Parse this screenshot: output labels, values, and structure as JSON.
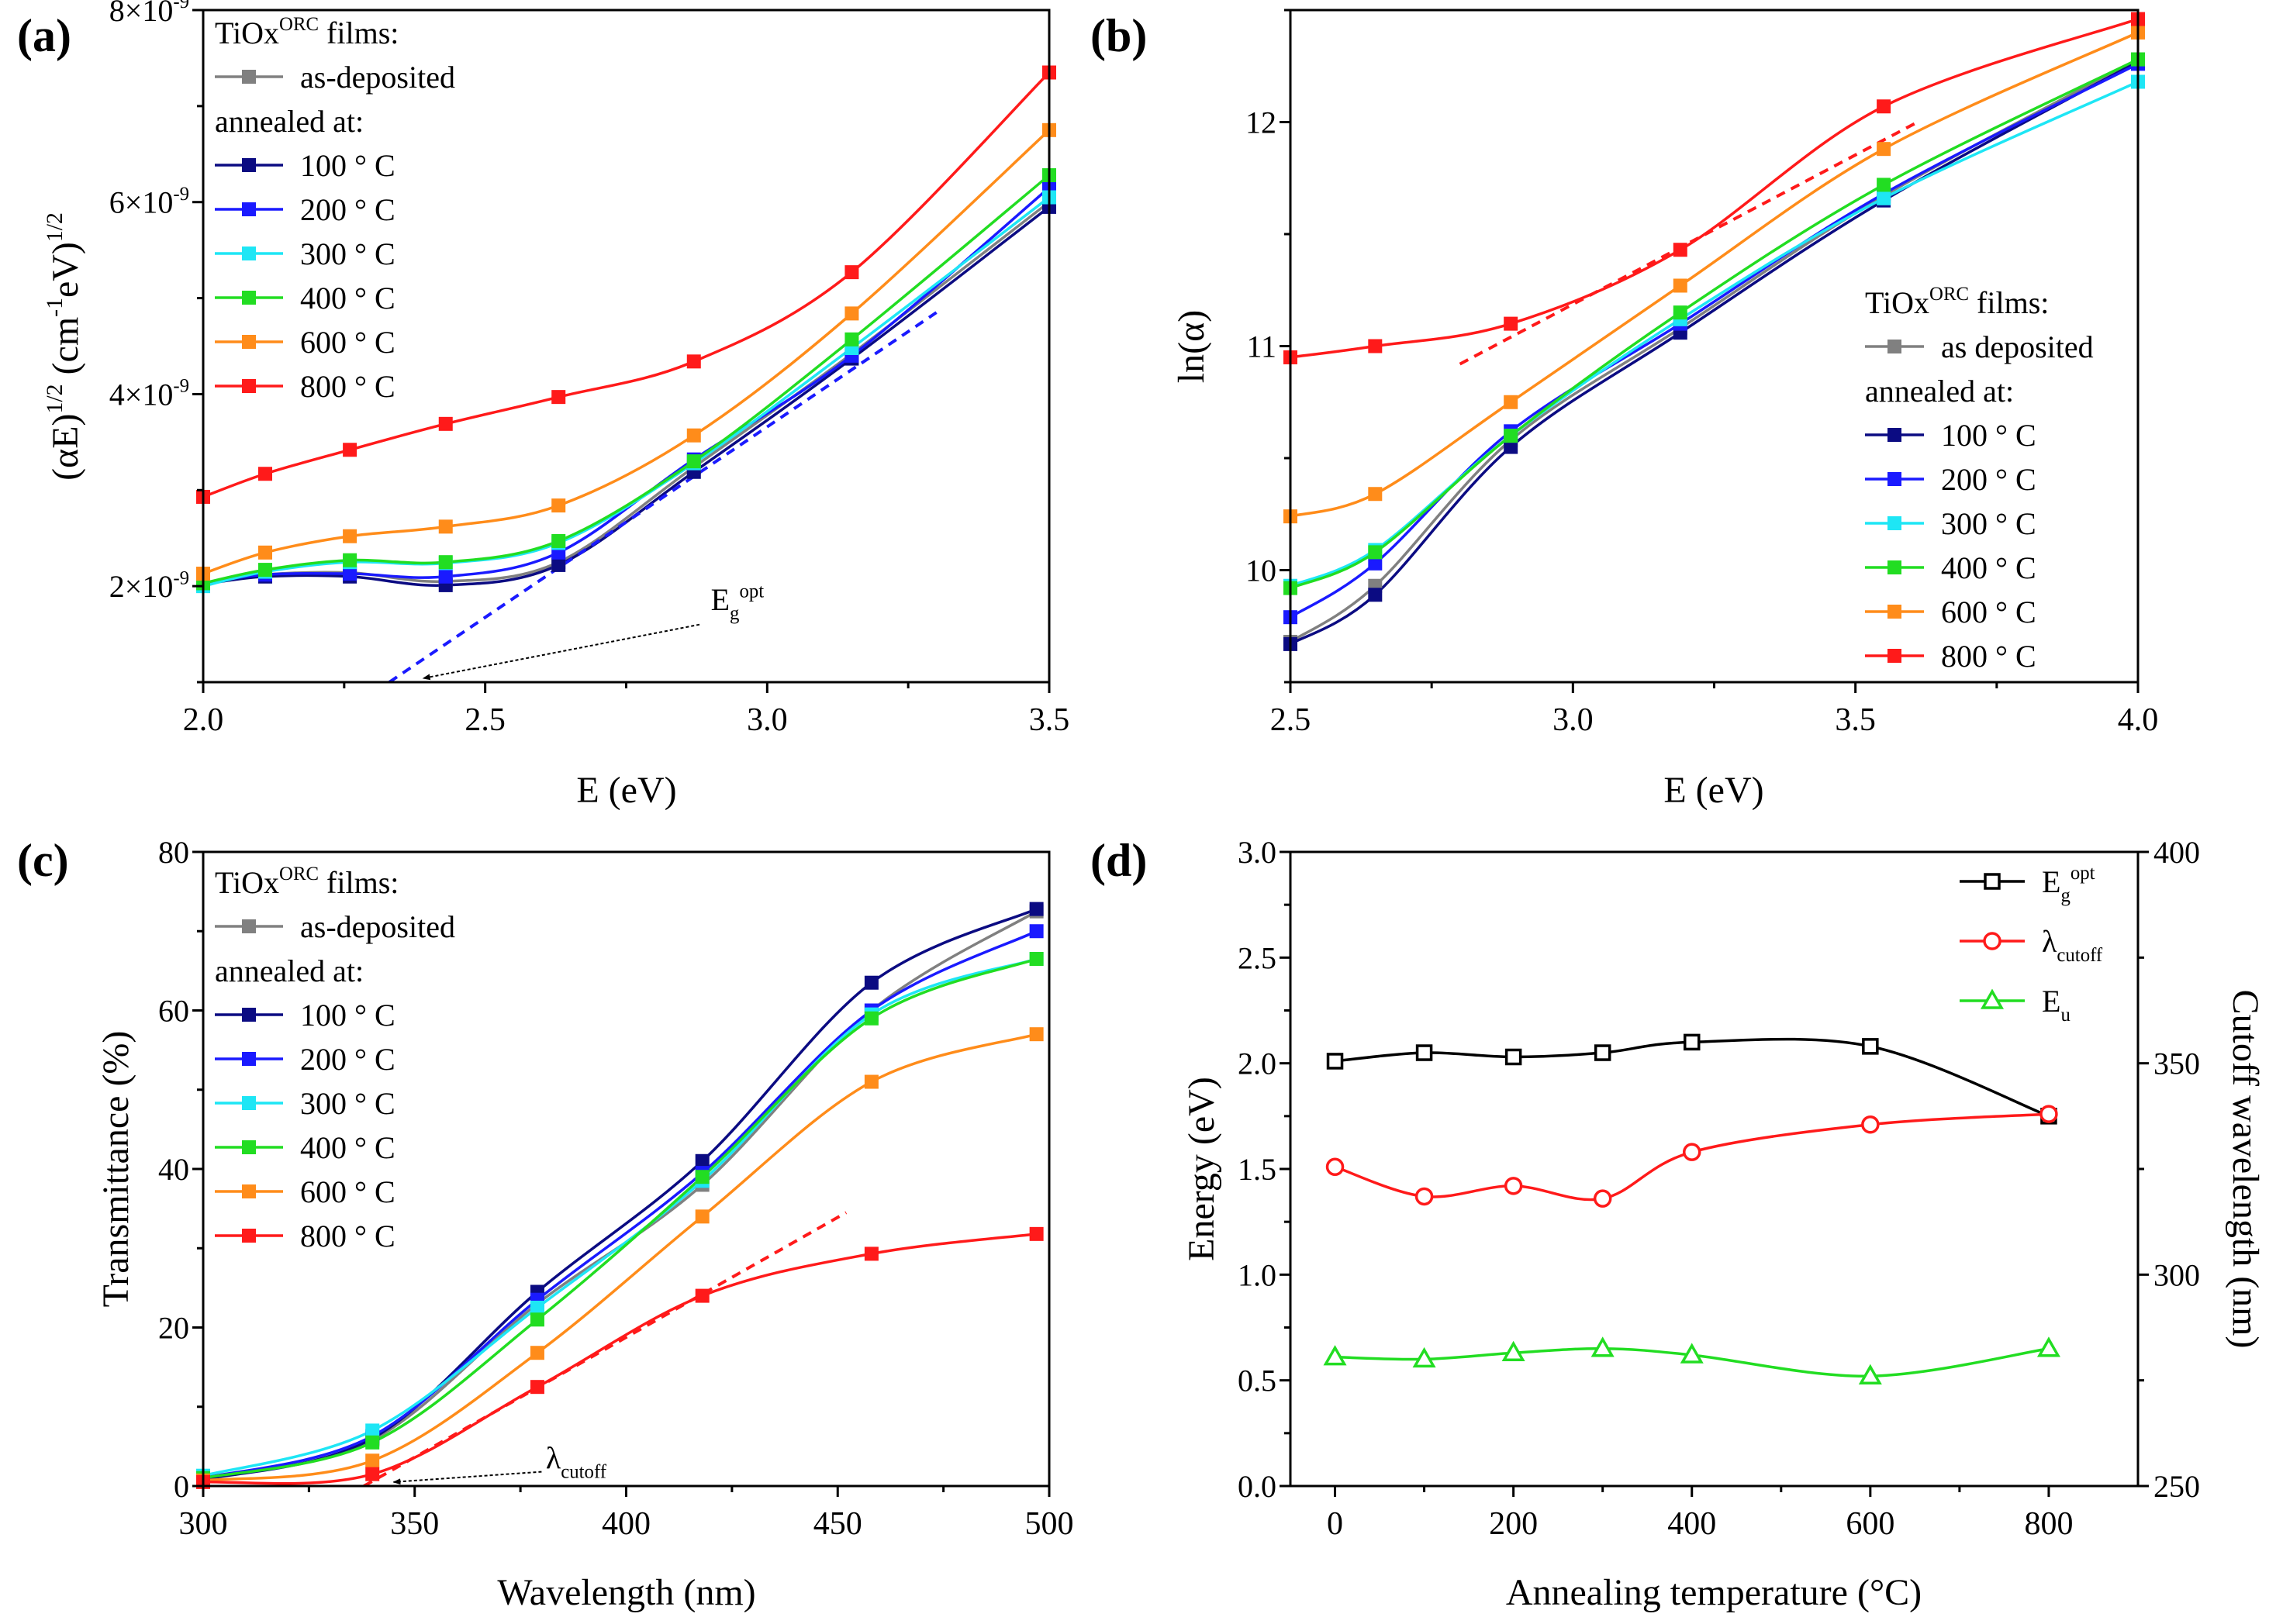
{
  "colors": {
    "as_deposited": "#808080",
    "c100": "#0b0b82",
    "c200": "#1a1aff",
    "c300": "#1ee6f5",
    "c400": "#22dd22",
    "c600": "#ff8c1a",
    "c800": "#ff1a1a",
    "black": "#000000"
  },
  "chart_data": [
    {
      "panel": "(a)",
      "type": "line",
      "xlabel": [
        {
          "t": "E (eV)"
        }
      ],
      "ylabel": [
        {
          "t": "(αE)"
        },
        {
          "t": "1/2",
          "s": "sup"
        },
        {
          "t": " (cm"
        },
        {
          "t": "-1",
          "s": "sup"
        },
        {
          "t": "eV)"
        },
        {
          "t": "1/2",
          "s": "sup"
        }
      ],
      "xlim": [
        2.0,
        3.5
      ],
      "ylim": [
        1e-09,
        8e-09
      ],
      "xticks": [
        {
          "v": 2.0,
          "label": [
            {
              "t": "2.0"
            }
          ]
        },
        {
          "v": 2.5,
          "label": [
            {
              "t": "2.5"
            }
          ]
        },
        {
          "v": 3.0,
          "label": [
            {
              "t": "3.0"
            }
          ]
        },
        {
          "v": 3.5,
          "label": [
            {
              "t": "3.5"
            }
          ]
        }
      ],
      "xminor": [
        2.25,
        2.75,
        3.25
      ],
      "yticks": [
        {
          "v": 2e-09,
          "label": [
            {
              "t": "2×10"
            },
            {
              "t": "-9",
              "s": "sup"
            }
          ]
        },
        {
          "v": 4e-09,
          "label": [
            {
              "t": "4×10"
            },
            {
              "t": "-9",
              "s": "sup"
            }
          ]
        },
        {
          "v": 6e-09,
          "label": [
            {
              "t": "6×10"
            },
            {
              "t": "-9",
              "s": "sup"
            }
          ]
        },
        {
          "v": 8e-09,
          "label": [
            {
              "t": "8×10"
            },
            {
              "t": "-9",
              "s": "sup"
            }
          ]
        }
      ],
      "yminor": [
        1e-09,
        3e-09,
        5e-09,
        7e-09
      ],
      "legend": {
        "title": [
          {
            "t": "TiOx"
          },
          {
            "t": "ORC",
            "s": "sup"
          },
          {
            "t": " films:"
          }
        ],
        "subtitle": "annealed at:",
        "placement": "top-left"
      },
      "x": [
        2.0,
        2.11,
        2.26,
        2.43,
        2.63,
        2.87,
        3.15,
        3.5
      ],
      "series": [
        {
          "name": "as-deposited",
          "color_key": "as_deposited",
          "y": [
            2.02e-09,
            2.12e-09,
            2.14e-09,
            2.05e-09,
            2.25e-09,
            3.24e-09,
            4.42e-09,
            6e-09
          ]
        },
        {
          "name": "100 ° C",
          "color_key": "c100",
          "y": [
            2.02e-09,
            2.1e-09,
            2.1e-09,
            2.01e-09,
            2.22e-09,
            3.19e-09,
            4.37e-09,
            5.95e-09
          ]
        },
        {
          "name": "200 ° C",
          "color_key": "c200",
          "y": [
            2.03e-09,
            2.12e-09,
            2.13e-09,
            2.1e-09,
            2.35e-09,
            3.32e-09,
            4.4e-09,
            6.15e-09
          ]
        },
        {
          "name": "300 ° C",
          "color_key": "c300",
          "y": [
            2e-09,
            2.15e-09,
            2.25e-09,
            2.24e-09,
            2.45e-09,
            3.28e-09,
            4.48e-09,
            6.05e-09
          ]
        },
        {
          "name": "400 ° C",
          "color_key": "c400",
          "y": [
            2.03e-09,
            2.17e-09,
            2.27e-09,
            2.25e-09,
            2.47e-09,
            3.3e-09,
            4.57e-09,
            6.28e-09
          ]
        },
        {
          "name": "600 ° C",
          "color_key": "c600",
          "y": [
            2.13e-09,
            2.35e-09,
            2.52e-09,
            2.62e-09,
            2.84e-09,
            3.57e-09,
            4.84e-09,
            6.75e-09
          ]
        },
        {
          "name": "800 ° C",
          "color_key": "c800",
          "y": [
            2.93e-09,
            3.17e-09,
            3.42e-09,
            3.69e-09,
            3.97e-09,
            4.34e-09,
            5.27e-09,
            7.35e-09
          ]
        }
      ],
      "fit_line": {
        "color_key": "c200",
        "from": [
          2.33,
          1e-09
        ],
        "to": [
          3.3,
          4.85e-09
        ]
      },
      "annotation": {
        "label": [
          {
            "t": "E"
          },
          {
            "t": "g",
            "s": "sub"
          },
          {
            "t": "opt",
            "s": "sup"
          }
        ],
        "text_at": [
          2.9,
          1.75e-09
        ],
        "arrow_from": [
          2.88,
          1.6e-09
        ],
        "arrow_to": [
          2.39,
          1.04e-09
        ]
      }
    },
    {
      "panel": "(b)",
      "type": "line",
      "xlabel": [
        {
          "t": "E (eV)"
        }
      ],
      "ylabel": [
        {
          "t": "ln(α)"
        }
      ],
      "xlim": [
        2.5,
        4.0
      ],
      "ylim": [
        9.5,
        12.5
      ],
      "xticks": [
        {
          "v": 2.5,
          "label": [
            {
              "t": "2.5"
            }
          ]
        },
        {
          "v": 3.0,
          "label": [
            {
              "t": "3.0"
            }
          ]
        },
        {
          "v": 3.5,
          "label": [
            {
              "t": "3.5"
            }
          ]
        },
        {
          "v": 4.0,
          "label": [
            {
              "t": "4.0"
            }
          ]
        }
      ],
      "xminor": [
        2.75,
        3.25,
        3.75
      ],
      "yticks": [
        {
          "v": 10,
          "label": [
            {
              "t": "10"
            }
          ]
        },
        {
          "v": 11,
          "label": [
            {
              "t": "11"
            }
          ]
        },
        {
          "v": 12,
          "label": [
            {
              "t": "12"
            }
          ]
        }
      ],
      "yminor": [
        9.5,
        10.5,
        11.5,
        12.5
      ],
      "legend": {
        "title": [
          {
            "t": "TiOx"
          },
          {
            "t": "ORC",
            "s": "sup"
          },
          {
            "t": " films:"
          }
        ],
        "subtitle": "annealed at:",
        "placement": "bottom-right"
      },
      "x": [
        2.5,
        2.65,
        2.89,
        3.19,
        3.55,
        4.0
      ],
      "series": [
        {
          "name": "as deposited",
          "color_key": "as_deposited",
          "y": [
            9.68,
            9.93,
            10.58,
            11.08,
            11.67,
            12.28
          ]
        },
        {
          "name": "100 ° C",
          "color_key": "c100",
          "y": [
            9.67,
            9.89,
            10.55,
            11.06,
            11.65,
            12.27
          ]
        },
        {
          "name": "200 ° C",
          "color_key": "c200",
          "y": [
            9.79,
            10.03,
            10.62,
            11.1,
            11.68,
            12.26
          ]
        },
        {
          "name": "300 ° C",
          "color_key": "c300",
          "y": [
            9.93,
            10.09,
            10.6,
            11.12,
            11.66,
            12.18
          ]
        },
        {
          "name": "400 ° C",
          "color_key": "c400",
          "y": [
            9.92,
            10.08,
            10.6,
            11.15,
            11.72,
            12.28
          ]
        },
        {
          "name": "600 ° C",
          "color_key": "c600",
          "y": [
            10.24,
            10.34,
            10.75,
            11.27,
            11.88,
            12.4
          ]
        },
        {
          "name": "800 ° C",
          "color_key": "c800",
          "y": [
            10.95,
            11.0,
            11.1,
            11.43,
            12.07,
            12.46
          ]
        }
      ],
      "fit_line": {
        "color_key": "c800",
        "from": [
          2.8,
          10.92
        ],
        "to": [
          3.61,
          12.0
        ]
      }
    },
    {
      "panel": "(c)",
      "type": "line",
      "xlabel": [
        {
          "t": "Wavelength (nm)"
        }
      ],
      "ylabel": [
        {
          "t": "Transmittance (%)"
        }
      ],
      "xlim": [
        300,
        500
      ],
      "ylim": [
        0,
        80
      ],
      "xticks": [
        {
          "v": 300,
          "label": [
            {
              "t": "300"
            }
          ]
        },
        {
          "v": 350,
          "label": [
            {
              "t": "350"
            }
          ]
        },
        {
          "v": 400,
          "label": [
            {
              "t": "400"
            }
          ]
        },
        {
          "v": 450,
          "label": [
            {
              "t": "450"
            }
          ]
        },
        {
          "v": 500,
          "label": [
            {
              "t": "500"
            }
          ]
        }
      ],
      "xminor": [
        325,
        375,
        425,
        475
      ],
      "yticks": [
        {
          "v": 0,
          "label": [
            {
              "t": "0"
            }
          ]
        },
        {
          "v": 20,
          "label": [
            {
              "t": "20"
            }
          ]
        },
        {
          "v": 40,
          "label": [
            {
              "t": "40"
            }
          ]
        },
        {
          "v": 60,
          "label": [
            {
              "t": "60"
            }
          ]
        },
        {
          "v": 80,
          "label": [
            {
              "t": "80"
            }
          ]
        }
      ],
      "yminor": [
        10,
        30,
        50,
        70
      ],
      "legend": {
        "title": [
          {
            "t": "TiOx"
          },
          {
            "t": "ORC",
            "s": "sup"
          },
          {
            "t": " films:"
          }
        ],
        "subtitle": "annealed at:",
        "placement": "top-left"
      },
      "x": [
        300,
        340,
        379,
        418,
        458,
        497
      ],
      "series": [
        {
          "name": "as-deposited",
          "color_key": "as_deposited",
          "y": [
            0.9,
            5.8,
            23.0,
            38.0,
            60.0,
            72.5
          ]
        },
        {
          "name": "100 ° C",
          "color_key": "c100",
          "y": [
            0.8,
            6.0,
            24.5,
            41.0,
            63.5,
            72.8
          ]
        },
        {
          "name": "200 ° C",
          "color_key": "c200",
          "y": [
            1.0,
            6.3,
            23.5,
            39.5,
            60.0,
            70.0
          ]
        },
        {
          "name": "300 ° C",
          "color_key": "c300",
          "y": [
            1.3,
            7.0,
            22.5,
            38.5,
            59.5,
            66.5
          ]
        },
        {
          "name": "400 ° C",
          "color_key": "c400",
          "y": [
            1.0,
            5.5,
            21.0,
            39.0,
            59.0,
            66.5
          ]
        },
        {
          "name": "600 ° C",
          "color_key": "c600",
          "y": [
            0.7,
            3.2,
            16.8,
            34.0,
            51.0,
            57.0
          ]
        },
        {
          "name": "800 ° C",
          "color_key": "c800",
          "y": [
            0.5,
            1.5,
            12.5,
            24.0,
            29.3,
            31.8
          ]
        }
      ],
      "fit_line": {
        "color_key": "c800",
        "from": [
          338,
          0
        ],
        "to": [
          452,
          34.5
        ]
      },
      "annotation": {
        "label": [
          {
            "t": "λ"
          },
          {
            "t": "cutoff",
            "s": "sub"
          }
        ],
        "text_at": [
          381,
          2.2
        ],
        "arrow_from": [
          380,
          1.8
        ],
        "arrow_to": [
          345,
          0.5
        ]
      }
    },
    {
      "panel": "(d)",
      "type": "line",
      "xlabel": [
        {
          "t": "Annealing temperature (°C)"
        }
      ],
      "ylabel": [
        {
          "t": "Energy (eV)"
        }
      ],
      "y2label": [
        {
          "t": "Cutoff wavelength (nm)"
        }
      ],
      "xlim": [
        -50,
        900
      ],
      "ylim": [
        0,
        3.0
      ],
      "y2lim": [
        250,
        400
      ],
      "xticks": [
        {
          "v": 0,
          "label": [
            {
              "t": "0"
            }
          ]
        },
        {
          "v": 200,
          "label": [
            {
              "t": "200"
            }
          ]
        },
        {
          "v": 400,
          "label": [
            {
              "t": "400"
            }
          ]
        },
        {
          "v": 600,
          "label": [
            {
              "t": "600"
            }
          ]
        },
        {
          "v": 800,
          "label": [
            {
              "t": "800"
            }
          ]
        }
      ],
      "xminor": [
        100,
        300,
        500,
        700
      ],
      "yticks": [
        {
          "v": 0,
          "label": [
            {
              "t": "0.0"
            }
          ]
        },
        {
          "v": 0.5,
          "label": [
            {
              "t": "0.5"
            }
          ]
        },
        {
          "v": 1.0,
          "label": [
            {
              "t": "1.0"
            }
          ]
        },
        {
          "v": 1.5,
          "label": [
            {
              "t": "1.5"
            }
          ]
        },
        {
          "v": 2.0,
          "label": [
            {
              "t": "2.0"
            }
          ]
        },
        {
          "v": 2.5,
          "label": [
            {
              "t": "2.5"
            }
          ]
        },
        {
          "v": 3.0,
          "label": [
            {
              "t": "3.0"
            }
          ]
        }
      ],
      "yminor": [
        0.25,
        0.75,
        1.25,
        1.75,
        2.25,
        2.75
      ],
      "y2ticks": [
        {
          "v": 250,
          "label": [
            {
              "t": "250"
            }
          ]
        },
        {
          "v": 300,
          "label": [
            {
              "t": "300"
            }
          ]
        },
        {
          "v": 350,
          "label": [
            {
              "t": "350"
            }
          ]
        },
        {
          "v": 400,
          "label": [
            {
              "t": "400"
            }
          ]
        }
      ],
      "y2minor": [
        275,
        325,
        375
      ],
      "legend": {
        "placement": "top-right"
      },
      "x": [
        0,
        100,
        200,
        300,
        400,
        600,
        800
      ],
      "series": [
        {
          "name": [
            {
              "t": "E"
            },
            {
              "t": "g",
              "s": "sub"
            },
            {
              "t": "opt",
              "s": "sup"
            }
          ],
          "color_key": "black",
          "marker": "square",
          "axis": "left",
          "y": [
            2.01,
            2.05,
            2.03,
            2.05,
            2.1,
            2.08,
            1.75
          ]
        },
        {
          "name": [
            {
              "t": "λ"
            },
            {
              "t": "cutoff",
              "s": "sub"
            }
          ],
          "color_key": "c800",
          "marker": "circle",
          "axis": "right",
          "y": [
            325.5,
            318.5,
            321.0,
            318.0,
            329.0,
            335.5,
            338.0
          ]
        },
        {
          "name": [
            {
              "t": "E"
            },
            {
              "t": "u",
              "s": "sub"
            }
          ],
          "color_key": "c400",
          "marker": "triangle",
          "axis": "left",
          "y": [
            0.61,
            0.6,
            0.63,
            0.65,
            0.62,
            0.52,
            0.65
          ]
        }
      ]
    }
  ]
}
